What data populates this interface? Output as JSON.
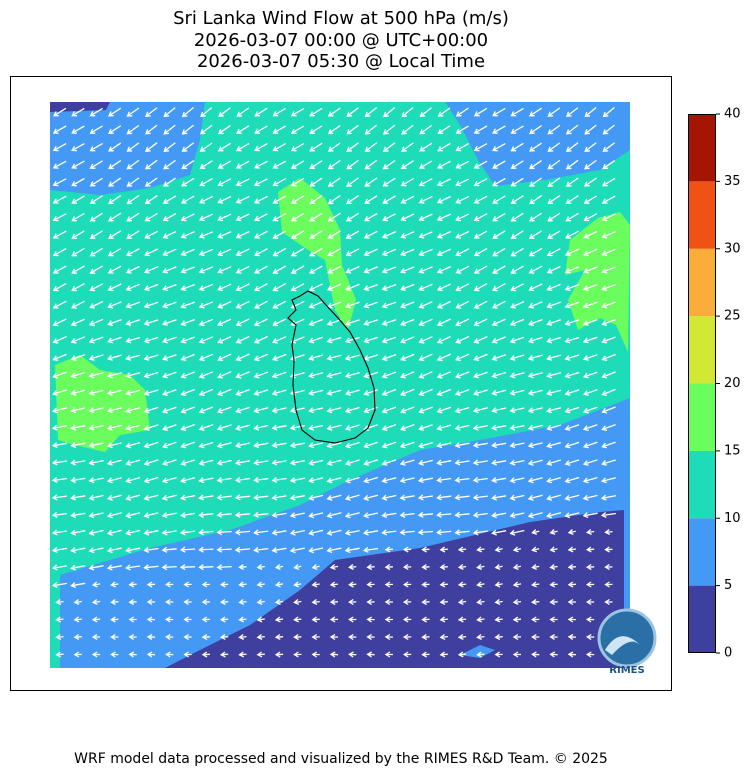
{
  "title": [
    "Sri Lanka Wind Flow at 500 hPa (m/s)",
    "2026-03-07 00:00 @ UTC+00:00",
    "2026-03-07 05:30 @ Local Time"
  ],
  "colorbar": {
    "lim": [
      0,
      40
    ],
    "ticks": [
      0,
      5,
      10,
      15,
      20,
      25,
      30,
      35,
      40
    ],
    "colors": [
      "#3f3f9f",
      "#4499f5",
      "#1fdcb9",
      "#6bfd5e",
      "#d3e834",
      "#fbad3a",
      "#ef5214",
      "#a51602"
    ]
  },
  "logo": {
    "text": "RIMES"
  },
  "footer": "WRF model data processed and visualized by the RIMES R&D Team. © 2025"
}
